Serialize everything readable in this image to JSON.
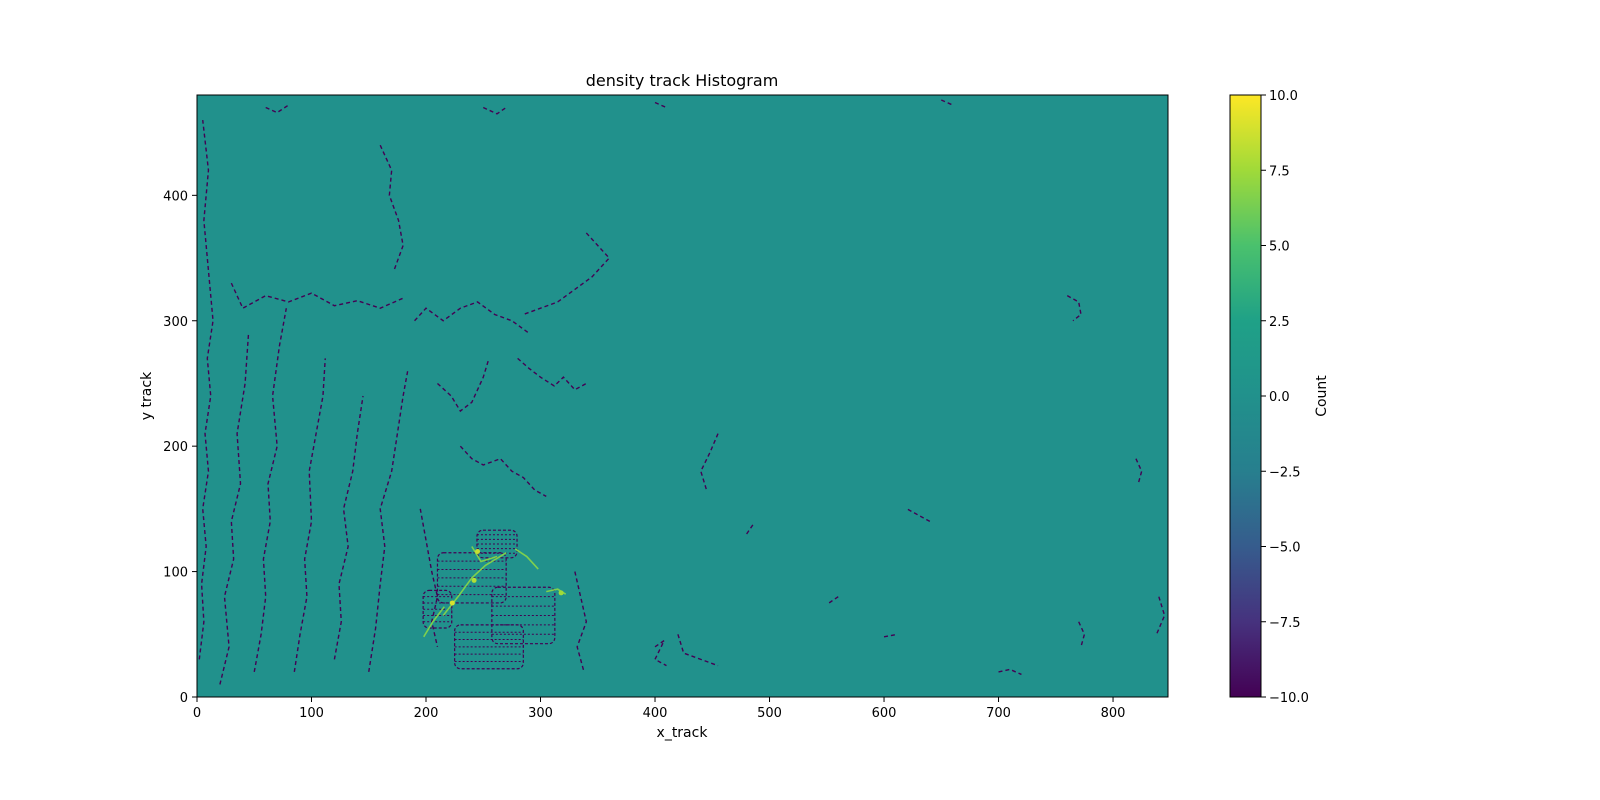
{
  "chart_data": {
    "type": "heatmap",
    "title": "density track Histogram",
    "xlabel": "x_track",
    "ylabel": "y track",
    "xlim": [
      0,
      848
    ],
    "ylim": [
      0,
      480
    ],
    "xticks": [
      0,
      100,
      200,
      300,
      400,
      500,
      600,
      700,
      800
    ],
    "yticks": [
      0,
      100,
      200,
      300,
      400
    ],
    "colormap": "viridis",
    "background_value": 0,
    "colorbar": {
      "label": "Count",
      "vmin": -10,
      "vmax": 10,
      "ticks": [
        10.0,
        7.5,
        5.0,
        2.5,
        0.0,
        -2.5,
        -5.0,
        -7.5,
        -10.0
      ],
      "tick_labels": [
        "10.0",
        "7.5",
        "5.0",
        "2.5",
        "0.0",
        "−2.5",
        "−5.0",
        "−7.5",
        "−10.0"
      ]
    },
    "grid": false,
    "negative_trace_paths": [
      [
        [
          2,
          30
        ],
        [
          6,
          60
        ],
        [
          4,
          90
        ],
        [
          8,
          120
        ],
        [
          5,
          150
        ],
        [
          10,
          180
        ],
        [
          7,
          210
        ],
        [
          12,
          240
        ],
        [
          9,
          270
        ],
        [
          14,
          300
        ],
        [
          10,
          340
        ],
        [
          6,
          380
        ],
        [
          10,
          420
        ],
        [
          5,
          460
        ]
      ],
      [
        [
          20,
          10
        ],
        [
          28,
          40
        ],
        [
          24,
          80
        ],
        [
          32,
          110
        ],
        [
          30,
          140
        ],
        [
          38,
          170
        ],
        [
          35,
          210
        ],
        [
          42,
          250
        ],
        [
          45,
          290
        ]
      ],
      [
        [
          50,
          20
        ],
        [
          56,
          50
        ],
        [
          60,
          80
        ],
        [
          58,
          110
        ],
        [
          64,
          140
        ],
        [
          62,
          170
        ],
        [
          70,
          200
        ],
        [
          66,
          240
        ],
        [
          72,
          280
        ],
        [
          78,
          310
        ]
      ],
      [
        [
          85,
          20
        ],
        [
          90,
          50
        ],
        [
          96,
          80
        ],
        [
          94,
          110
        ],
        [
          100,
          140
        ],
        [
          98,
          180
        ],
        [
          104,
          210
        ],
        [
          110,
          240
        ],
        [
          112,
          270
        ]
      ],
      [
        [
          120,
          30
        ],
        [
          126,
          60
        ],
        [
          124,
          90
        ],
        [
          132,
          120
        ],
        [
          128,
          150
        ],
        [
          136,
          180
        ],
        [
          140,
          210
        ],
        [
          145,
          240
        ]
      ],
      [
        [
          150,
          20
        ],
        [
          156,
          55
        ],
        [
          160,
          90
        ],
        [
          164,
          120
        ],
        [
          160,
          150
        ],
        [
          170,
          180
        ],
        [
          175,
          210
        ],
        [
          180,
          240
        ],
        [
          184,
          260
        ]
      ],
      [
        [
          30,
          330
        ],
        [
          40,
          310
        ],
        [
          60,
          320
        ],
        [
          80,
          315
        ],
        [
          100,
          322
        ],
        [
          120,
          312
        ],
        [
          140,
          316
        ],
        [
          160,
          310
        ],
        [
          180,
          318
        ]
      ],
      [
        [
          190,
          300
        ],
        [
          200,
          310
        ],
        [
          215,
          300
        ],
        [
          230,
          310
        ],
        [
          245,
          315
        ],
        [
          260,
          305
        ],
        [
          275,
          300
        ],
        [
          290,
          290
        ]
      ],
      [
        [
          160,
          440
        ],
        [
          170,
          420
        ],
        [
          168,
          400
        ],
        [
          176,
          380
        ],
        [
          180,
          360
        ],
        [
          172,
          340
        ]
      ],
      [
        [
          340,
          370
        ],
        [
          350,
          360
        ],
        [
          360,
          350
        ],
        [
          345,
          335
        ],
        [
          330,
          325
        ],
        [
          315,
          315
        ],
        [
          300,
          310
        ],
        [
          285,
          305
        ]
      ],
      [
        [
          210,
          250
        ],
        [
          222,
          240
        ],
        [
          230,
          228
        ],
        [
          240,
          235
        ],
        [
          250,
          255
        ],
        [
          255,
          270
        ]
      ],
      [
        [
          280,
          270
        ],
        [
          290,
          262
        ],
        [
          300,
          255
        ],
        [
          312,
          248
        ],
        [
          320,
          255
        ],
        [
          330,
          245
        ],
        [
          340,
          250
        ]
      ],
      [
        [
          230,
          200
        ],
        [
          240,
          190
        ],
        [
          250,
          185
        ],
        [
          265,
          190
        ],
        [
          275,
          180
        ],
        [
          285,
          175
        ],
        [
          295,
          165
        ],
        [
          305,
          160
        ]
      ],
      [
        [
          195,
          150
        ],
        [
          200,
          125
        ],
        [
          205,
          100
        ],
        [
          210,
          80
        ],
        [
          205,
          60
        ],
        [
          210,
          40
        ]
      ],
      [
        [
          330,
          100
        ],
        [
          335,
          80
        ],
        [
          340,
          60
        ],
        [
          332,
          40
        ],
        [
          338,
          20
        ]
      ],
      [
        [
          400,
          40
        ],
        [
          408,
          45
        ],
        [
          400,
          30
        ],
        [
          410,
          25
        ]
      ],
      [
        [
          420,
          50
        ],
        [
          425,
          35
        ],
        [
          440,
          30
        ],
        [
          455,
          25
        ]
      ],
      [
        [
          455,
          210
        ],
        [
          448,
          195
        ],
        [
          440,
          180
        ],
        [
          445,
          165
        ]
      ],
      [
        [
          640,
          140
        ],
        [
          630,
          145
        ],
        [
          620,
          150
        ]
      ],
      [
        [
          760,
          320
        ],
        [
          770,
          315
        ],
        [
          772,
          305
        ],
        [
          765,
          300
        ]
      ],
      [
        [
          820,
          190
        ],
        [
          825,
          180
        ],
        [
          822,
          170
        ]
      ],
      [
        [
          770,
          60
        ],
        [
          775,
          50
        ],
        [
          772,
          40
        ]
      ],
      [
        [
          840,
          80
        ],
        [
          845,
          65
        ],
        [
          838,
          50
        ]
      ],
      [
        [
          700,
          20
        ],
        [
          710,
          22
        ],
        [
          720,
          18
        ]
      ],
      [
        [
          560,
          80
        ],
        [
          552,
          75
        ]
      ],
      [
        [
          600,
          48
        ],
        [
          612,
          50
        ]
      ],
      [
        [
          480,
          130
        ],
        [
          486,
          138
        ]
      ],
      [
        [
          250,
          470
        ],
        [
          262,
          465
        ],
        [
          270,
          470
        ]
      ],
      [
        [
          60,
          470
        ],
        [
          70,
          466
        ],
        [
          80,
          472
        ]
      ],
      [
        [
          400,
          474
        ],
        [
          410,
          470
        ]
      ],
      [
        [
          650,
          476
        ],
        [
          660,
          472
        ]
      ]
    ],
    "negative_dense_blobs": [
      {
        "x": 255,
        "y": 40,
        "w": 60,
        "h": 35
      },
      {
        "x": 285,
        "y": 65,
        "w": 55,
        "h": 45
      },
      {
        "x": 240,
        "y": 95,
        "w": 60,
        "h": 40
      },
      {
        "x": 262,
        "y": 122,
        "w": 35,
        "h": 22
      },
      {
        "x": 210,
        "y": 70,
        "w": 25,
        "h": 30
      }
    ],
    "positive_trace_paths": [
      [
        [
          215,
          65
        ],
        [
          228,
          80
        ],
        [
          240,
          95
        ],
        [
          252,
          105
        ],
        [
          270,
          115
        ]
      ],
      [
        [
          240,
          120
        ],
        [
          248,
          108
        ],
        [
          262,
          112
        ]
      ],
      [
        [
          278,
          118
        ],
        [
          288,
          112
        ],
        [
          298,
          102
        ]
      ],
      [
        [
          305,
          84
        ],
        [
          315,
          86
        ],
        [
          322,
          82
        ]
      ],
      [
        [
          198,
          48
        ],
        [
          206,
          60
        ],
        [
          216,
          72
        ]
      ]
    ],
    "positive_hotspots": [
      {
        "x": 223,
        "y": 75,
        "value": 9
      },
      {
        "x": 242,
        "y": 93,
        "value": 8
      },
      {
        "x": 245,
        "y": 116,
        "value": 8.5
      },
      {
        "x": 318,
        "y": 83,
        "value": 7.5
      }
    ]
  }
}
